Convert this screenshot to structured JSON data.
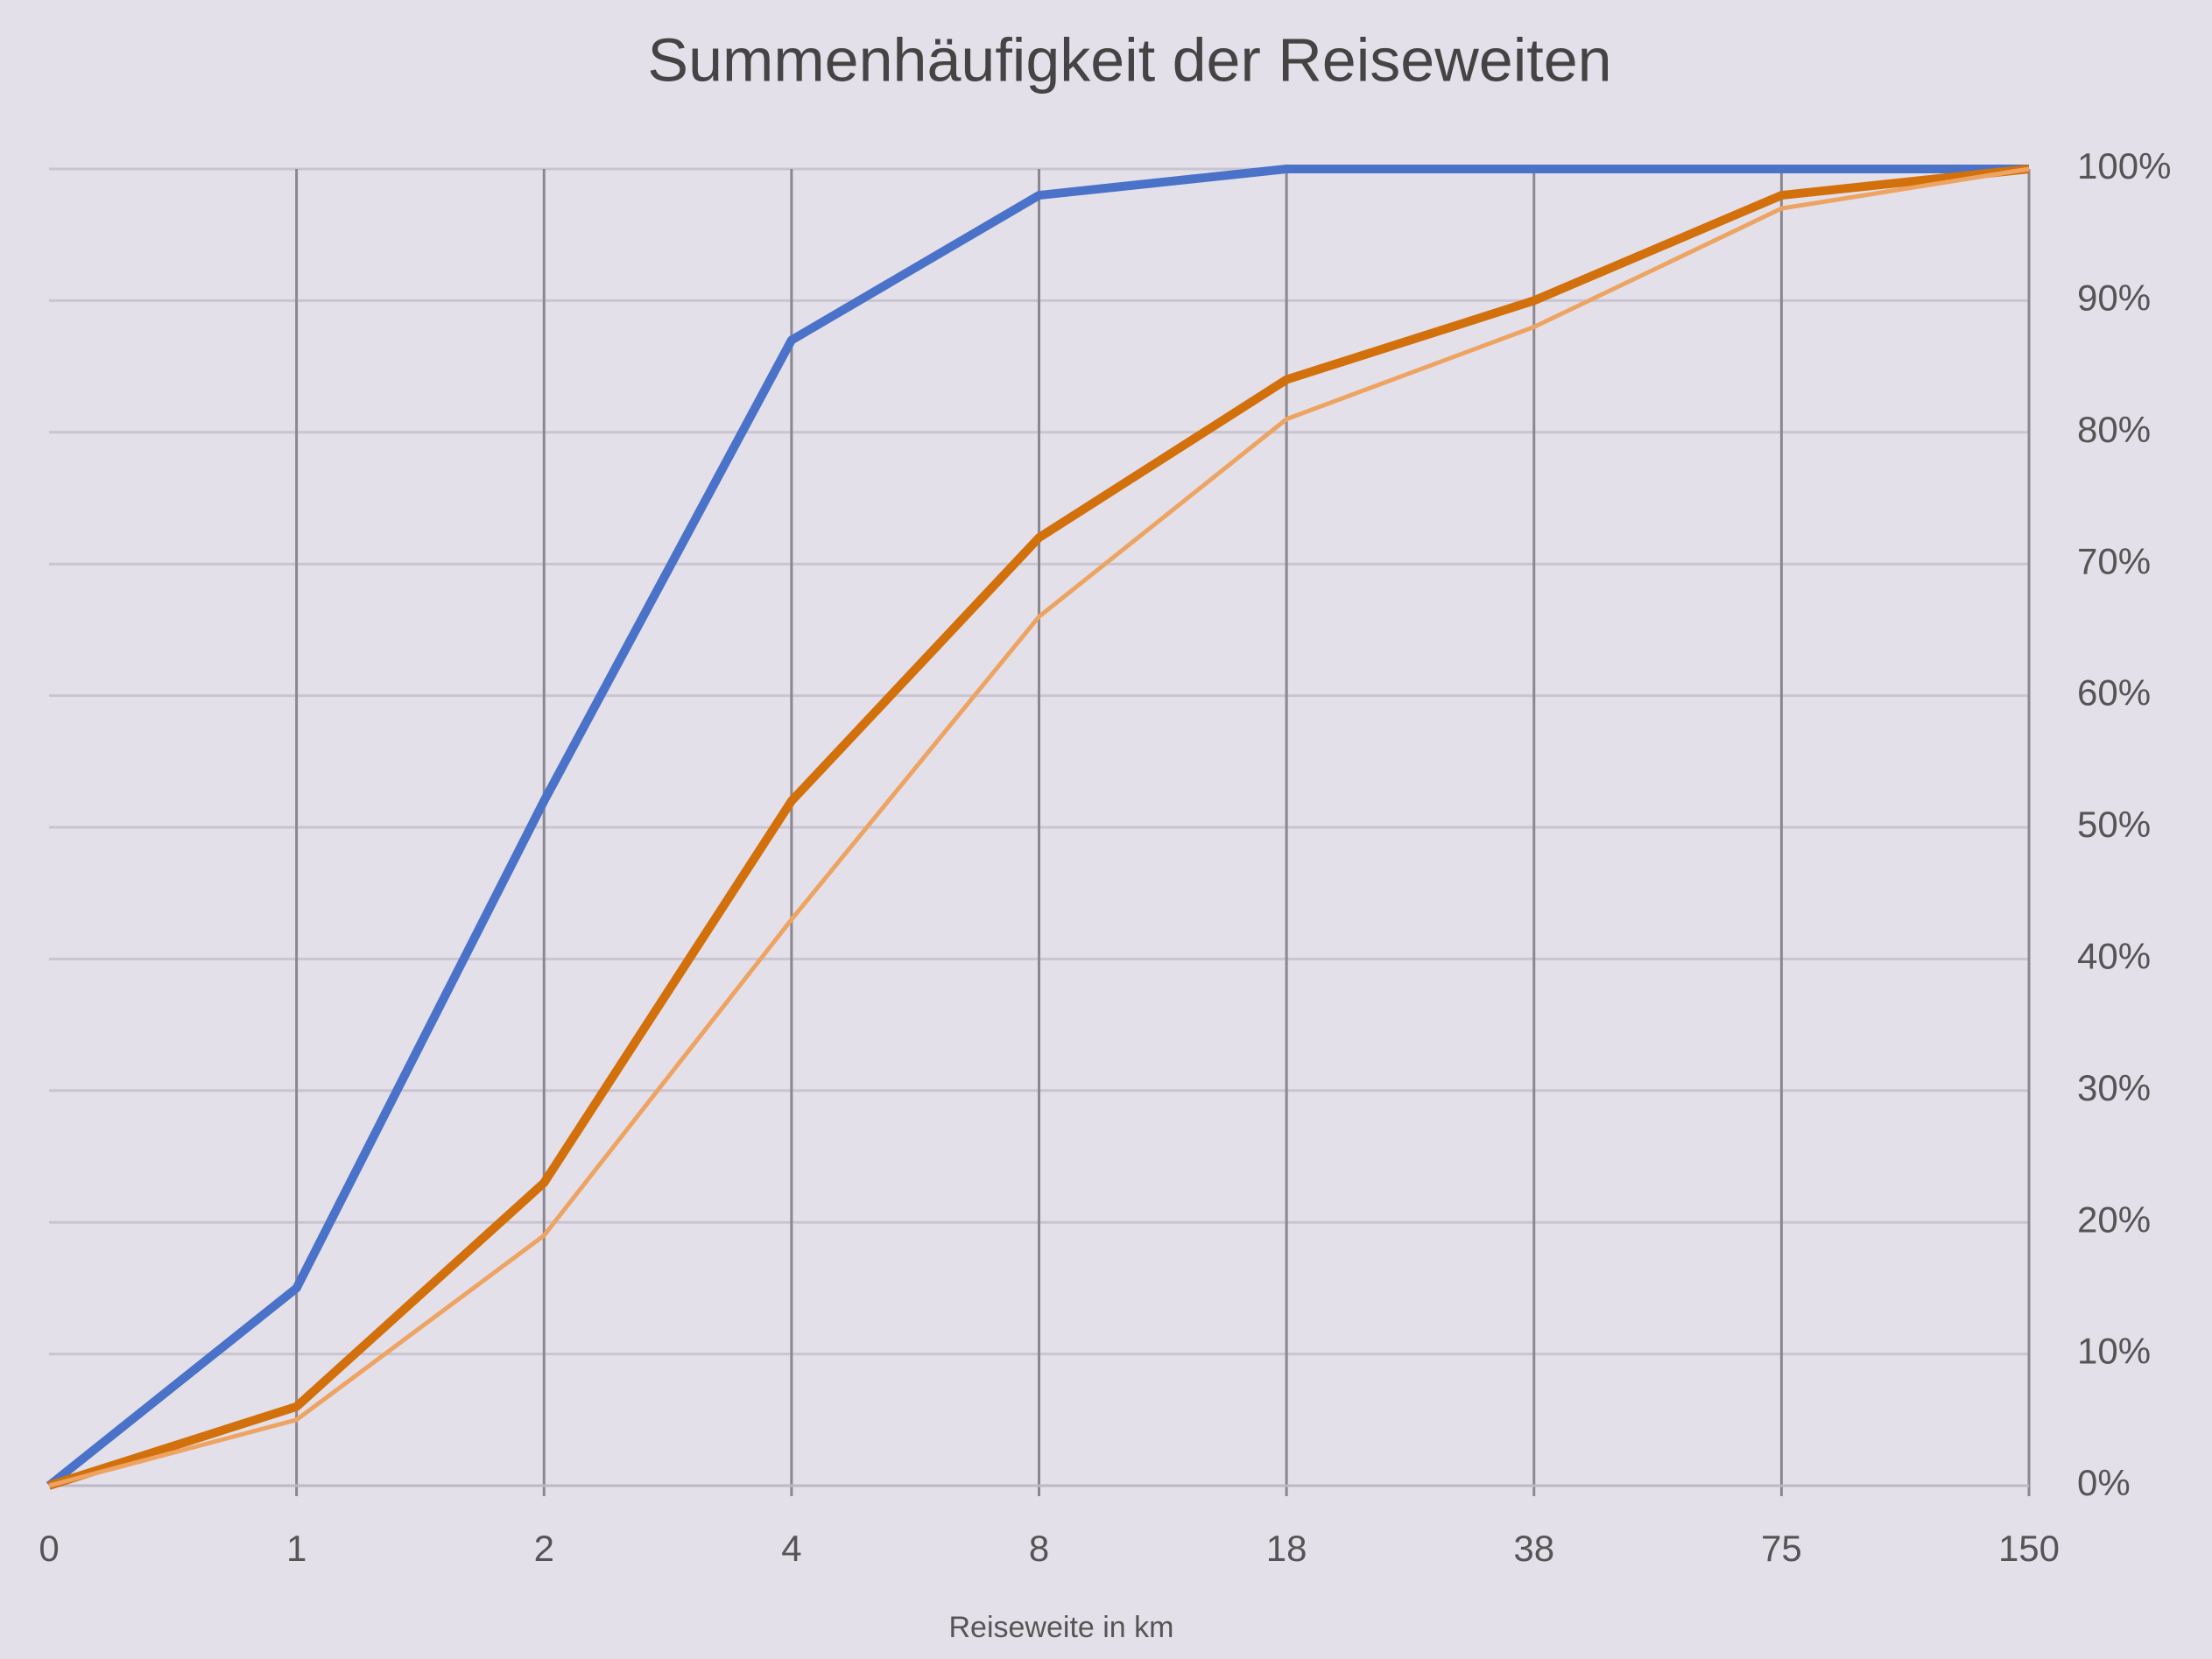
{
  "chart_data": {
    "type": "line",
    "title": "Summenhäufigkeit der Reiseweiten",
    "x_label": "Reiseweite in km",
    "categories": [
      "0",
      "1",
      "2",
      "4",
      "8",
      "18",
      "38",
      "75",
      "150"
    ],
    "series": [
      {
        "color": "#4a72c8",
        "values": [
          0,
          15,
          52,
          87,
          98,
          100,
          100,
          100,
          100
        ]
      },
      {
        "color": "#d2700c",
        "values": [
          0,
          6,
          23,
          52,
          72,
          84,
          90,
          98,
          100
        ]
      },
      {
        "color": "#eda462",
        "values": [
          0,
          5,
          19,
          43,
          66,
          81,
          88,
          97,
          100
        ]
      }
    ],
    "ylim": [
      0,
      100
    ],
    "yticks": [
      {
        "value": 0,
        "label": "0%"
      },
      {
        "value": 10,
        "label": "10%"
      },
      {
        "value": 20,
        "label": "20%"
      },
      {
        "value": 30,
        "label": "30%"
      },
      {
        "value": 40,
        "label": "40%"
      },
      {
        "value": 50,
        "label": "50%"
      },
      {
        "value": 60,
        "label": "60%"
      },
      {
        "value": 70,
        "label": "70%"
      },
      {
        "value": 80,
        "label": "80%"
      },
      {
        "value": 90,
        "label": "90%"
      },
      {
        "value": 100,
        "label": "100%"
      }
    ],
    "y_axis_side": "right",
    "grid": true
  }
}
